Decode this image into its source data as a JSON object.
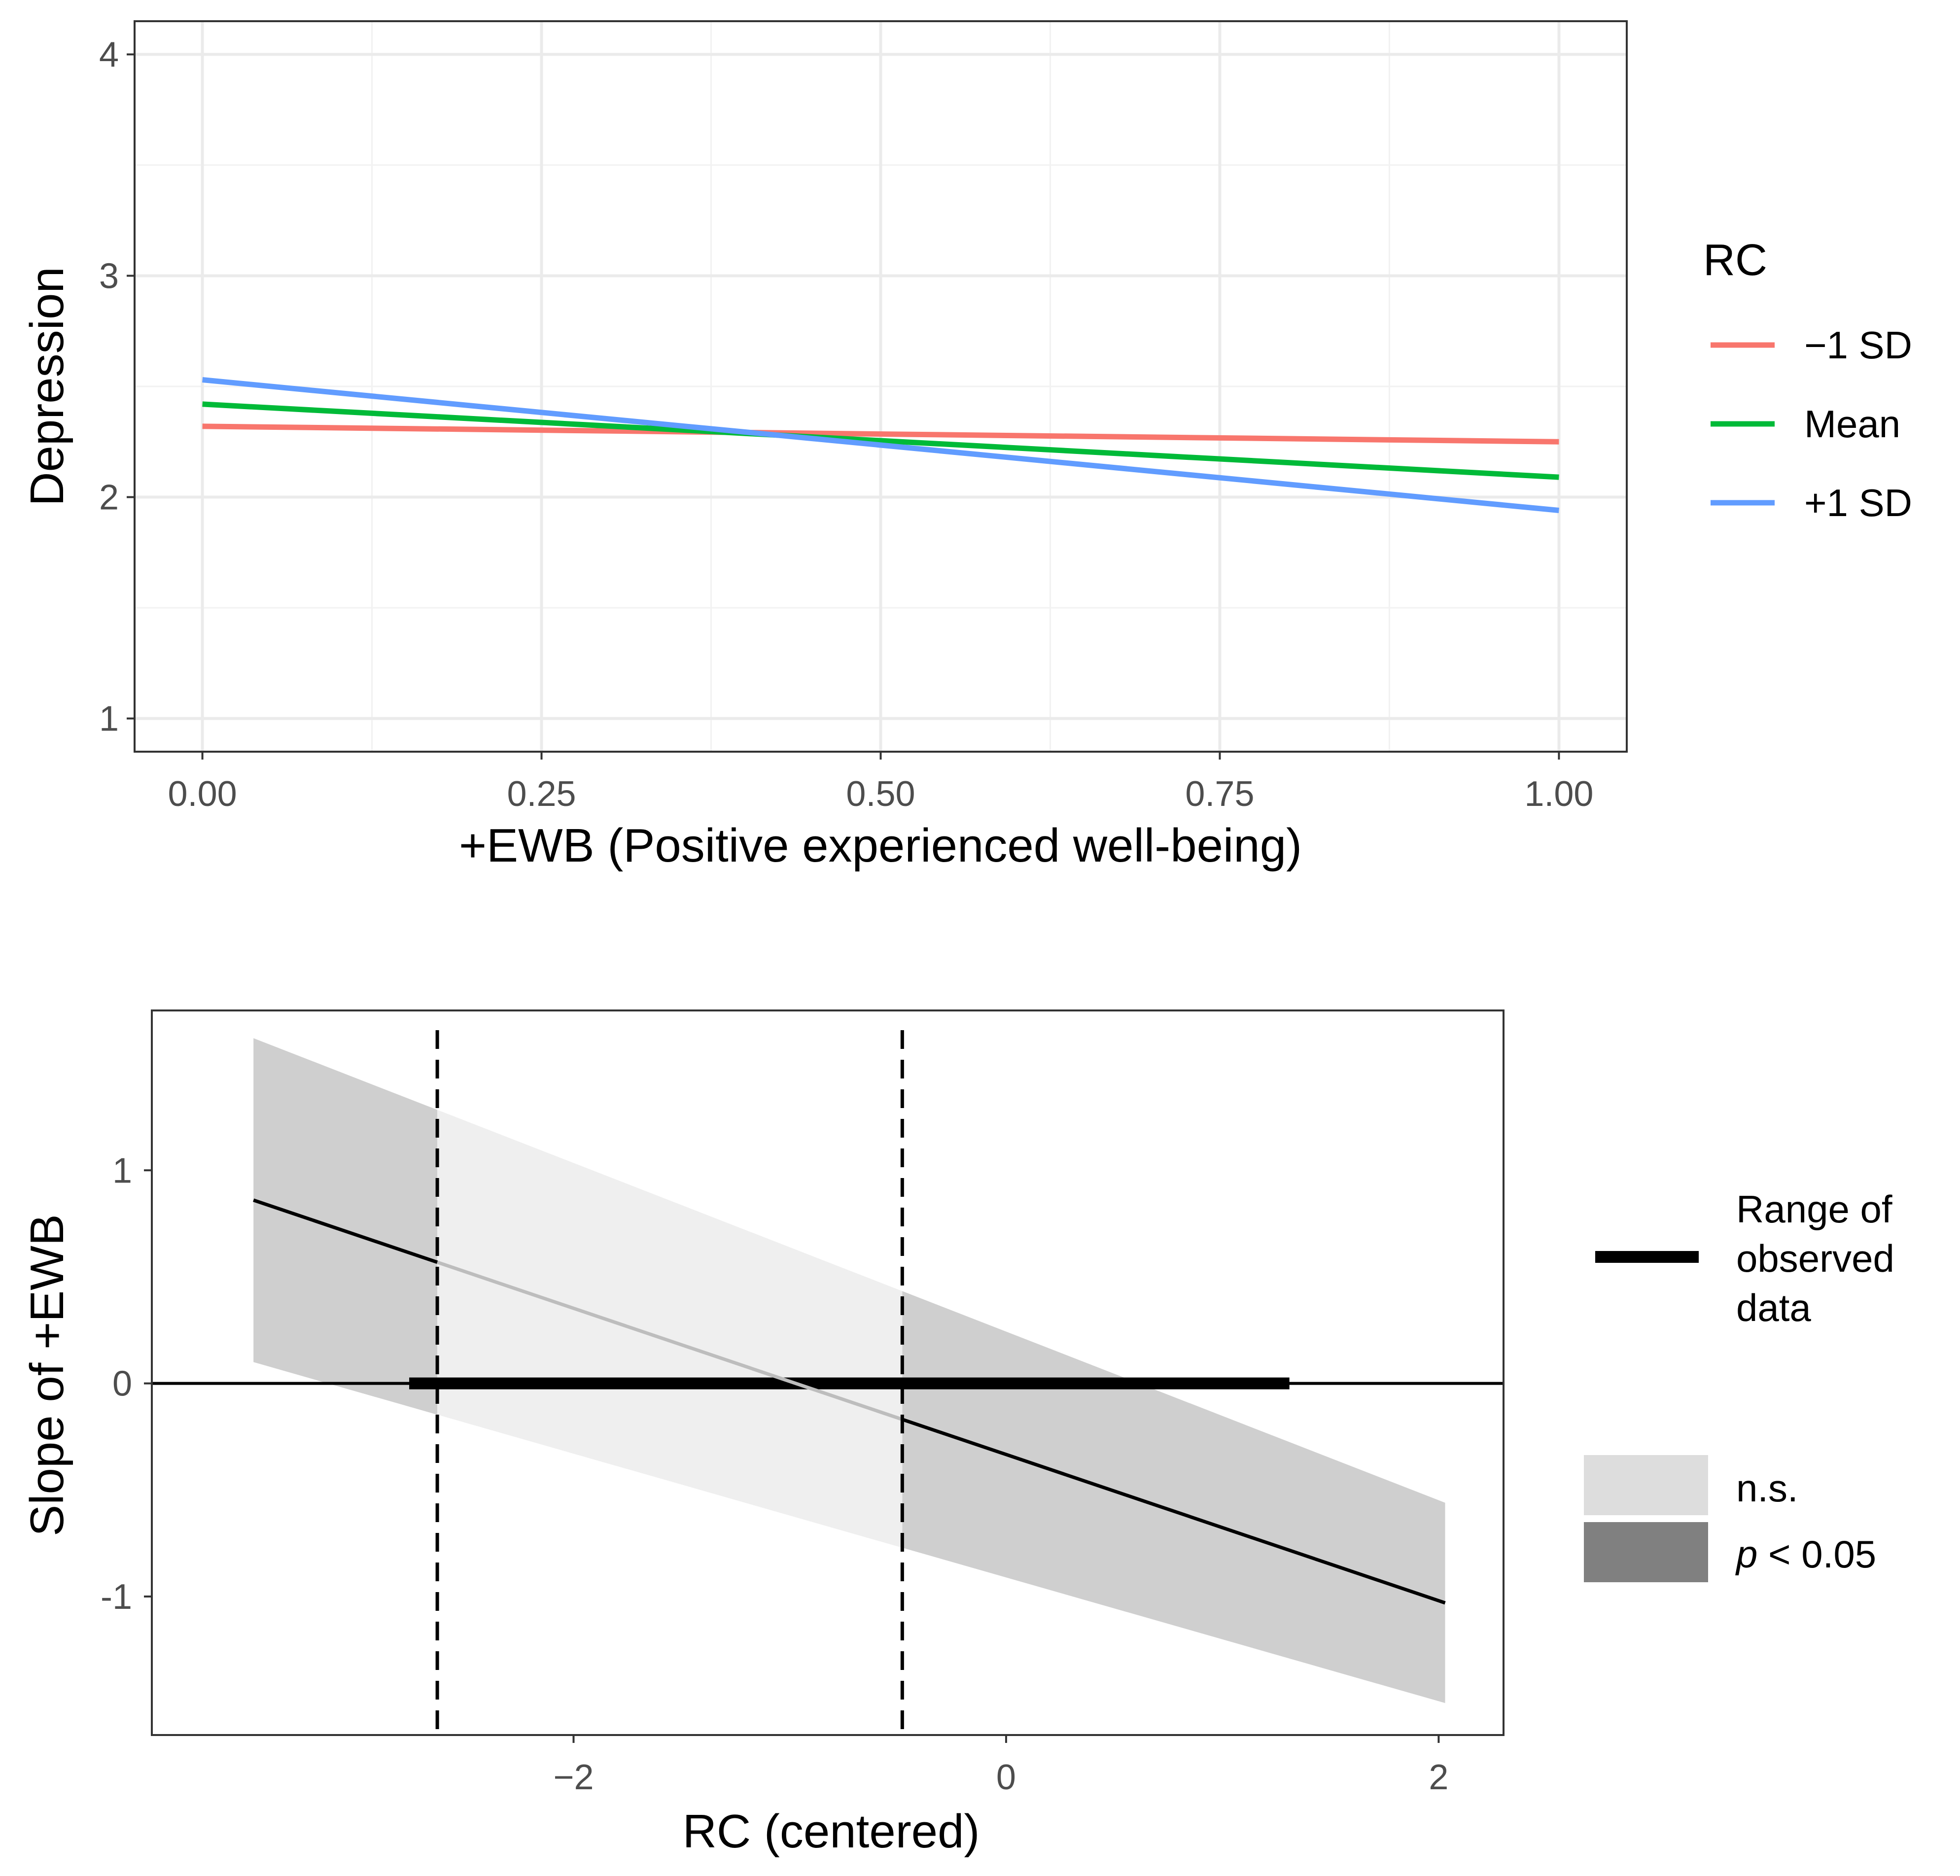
{
  "chart_data": [
    {
      "type": "line",
      "xlabel": "+EWB (Positive experienced well-being)",
      "ylabel": "Depression",
      "xlim": [
        -0.05,
        1.05
      ],
      "ylim": [
        0.85,
        4.15
      ],
      "x_ticks": [
        "0.00",
        "0.25",
        "0.50",
        "0.75",
        "1.00"
      ],
      "x_tick_values": [
        0,
        0.25,
        0.5,
        0.75,
        1
      ],
      "y_ticks": [
        "1",
        "2",
        "3",
        "4"
      ],
      "y_tick_values": [
        1,
        2,
        3,
        4
      ],
      "grid": true,
      "legend_title": "RC",
      "legend_position": "right",
      "series": [
        {
          "name": "−1 SD",
          "color": "#F8766D",
          "x": [
            0,
            1
          ],
          "y": [
            2.32,
            2.25
          ]
        },
        {
          "name": "Mean",
          "color": "#00BA38",
          "x": [
            0,
            1
          ],
          "y": [
            2.42,
            2.09
          ]
        },
        {
          "name": "+1 SD",
          "color": "#619CFF",
          "x": [
            0,
            1
          ],
          "y": [
            2.53,
            1.94
          ]
        }
      ]
    },
    {
      "type": "line",
      "title": "",
      "xlabel": "RC (centered)",
      "ylabel": "Slope of +EWB",
      "xlim": [
        -3.95,
        2.3
      ],
      "ylim": [
        -1.65,
        1.75
      ],
      "x_ticks": [
        "−2",
        "0",
        "2"
      ],
      "x_tick_values": [
        -2,
        0,
        2
      ],
      "y_ticks": [
        "1",
        "0",
        "-1"
      ],
      "y_tick_values": [
        1,
        0,
        -1
      ],
      "grid": false,
      "slope_line": {
        "x": [
          -3.48,
          2.03
        ],
        "y": [
          0.86,
          -1.03
        ]
      },
      "ci_lower": [
        0.1,
        -1.5
      ],
      "ci_upper": [
        1.62,
        -0.56
      ],
      "jn_bounds": [
        -2.63,
        -0.48
      ],
      "observed_range": [
        -2.76,
        1.31
      ],
      "legend": {
        "range_label_lines": [
          "Range of",
          "observed",
          "data"
        ],
        "ns_label": "n.s.",
        "sig_label_p": "p",
        "sig_label_rest": " < 0.05",
        "ns_color": "#DDDDDD",
        "sig_color": "#808080"
      }
    }
  ]
}
